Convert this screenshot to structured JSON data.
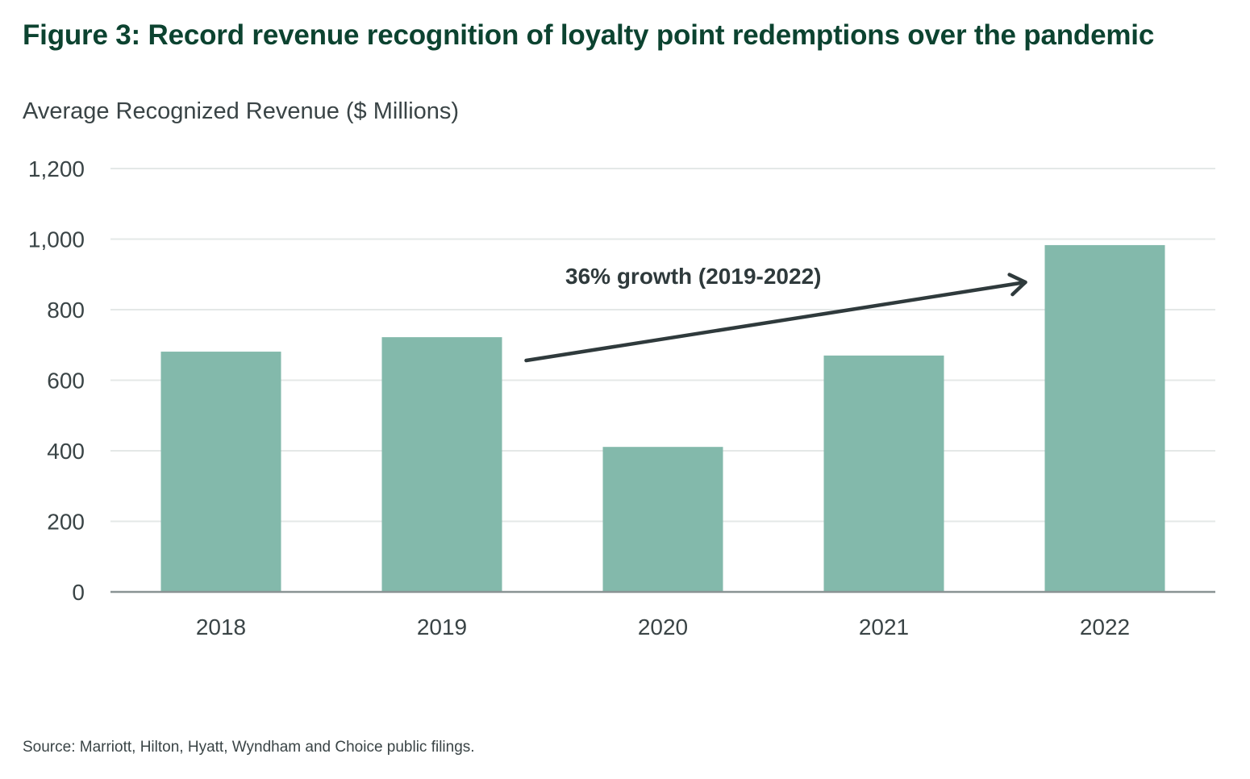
{
  "title": "Figure 3: Record revenue recognition of loyalty point redemptions over the pandemic",
  "source": "Source: Marriott, Hilton, Hyatt, Wyndham and Choice public filings.",
  "colors": {
    "bar": "#83b9ab",
    "title": "#0c4330",
    "text": "#3a4446",
    "grid": "#e4e8e7",
    "axis": "#8a9394",
    "arrow": "#2f3a3c"
  },
  "chart_data": {
    "type": "bar",
    "title": "Figure 3: Record revenue recognition of loyalty point redemptions over the pandemic",
    "xlabel": "",
    "ylabel": "Average Recognized Revenue ($ Millions)",
    "categories": [
      "2018",
      "2019",
      "2020",
      "2021",
      "2022"
    ],
    "values": [
      681,
      722,
      411,
      670,
      983
    ],
    "ylim": [
      0,
      1200
    ],
    "yticks": [
      0,
      200,
      400,
      600,
      800,
      1000,
      1200
    ],
    "ytick_labels": [
      "0",
      "200",
      "400",
      "600",
      "800",
      "1,000",
      "1,200"
    ],
    "grid": true,
    "legend": "none",
    "annotations": [
      {
        "text": "36% growth (2019-2022)",
        "type": "arrow",
        "from_category": "2019",
        "to_category": "2022"
      }
    ]
  }
}
